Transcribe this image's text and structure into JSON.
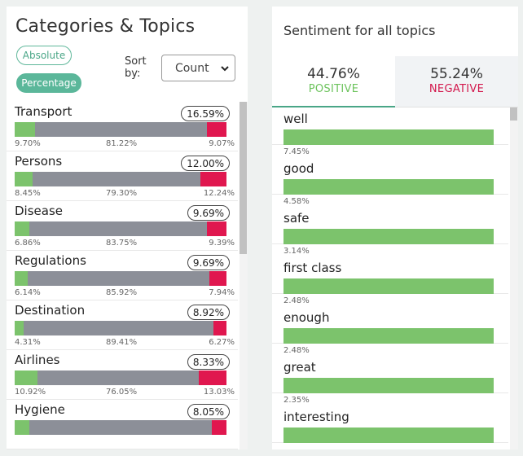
{
  "categories": {
    "title": "Categories & Topics",
    "absolute_label": "Absolute",
    "percentage_label": "Percentage",
    "sort_label": "Sort by:",
    "sort_value": "Count",
    "items": [
      {
        "name": "Transport",
        "share": "16.59%",
        "pos": 9.7,
        "neu": 81.22,
        "neg": 9.07,
        "pos_label": "9.70%",
        "neu_label": "81.22%",
        "neg_label": "9.07%"
      },
      {
        "name": "Persons",
        "share": "12.00%",
        "pos": 8.45,
        "neu": 79.3,
        "neg": 12.24,
        "pos_label": "8.45%",
        "neu_label": "79.30%",
        "neg_label": "12.24%"
      },
      {
        "name": "Disease",
        "share": "9.69%",
        "pos": 6.86,
        "neu": 83.75,
        "neg": 9.39,
        "pos_label": "6.86%",
        "neu_label": "83.75%",
        "neg_label": "9.39%"
      },
      {
        "name": "Regulations",
        "share": "9.69%",
        "pos": 6.14,
        "neu": 85.92,
        "neg": 7.94,
        "pos_label": "6.14%",
        "neu_label": "85.92%",
        "neg_label": "7.94%"
      },
      {
        "name": "Destination",
        "share": "8.92%",
        "pos": 4.31,
        "neu": 89.41,
        "neg": 6.27,
        "pos_label": "4.31%",
        "neu_label": "89.41%",
        "neg_label": "6.27%"
      },
      {
        "name": "Airlines",
        "share": "8.33%",
        "pos": 10.92,
        "neu": 76.05,
        "neg": 13.03,
        "pos_label": "10.92%",
        "neu_label": "76.05%",
        "neg_label": "13.03%"
      },
      {
        "name": "Hygiene",
        "share": "8.05%",
        "pos": 7.0,
        "neu": 86.0,
        "neg": 7.0,
        "pos_label": "",
        "neu_label": "",
        "neg_label": ""
      }
    ]
  },
  "sentiment": {
    "title": "Sentiment for all topics",
    "positive_value": "44.76%",
    "positive_label": "POSITIVE",
    "negative_value": "55.24%",
    "negative_label": "NEGATIVE",
    "words": [
      {
        "word": "well",
        "pct": "7.45%"
      },
      {
        "word": "good",
        "pct": "4.58%"
      },
      {
        "word": "safe",
        "pct": "3.14%"
      },
      {
        "word": "first class",
        "pct": "2.48%"
      },
      {
        "word": "enough",
        "pct": "2.48%"
      },
      {
        "word": "great",
        "pct": "2.35%"
      },
      {
        "word": "interesting",
        "pct": ""
      }
    ]
  }
}
